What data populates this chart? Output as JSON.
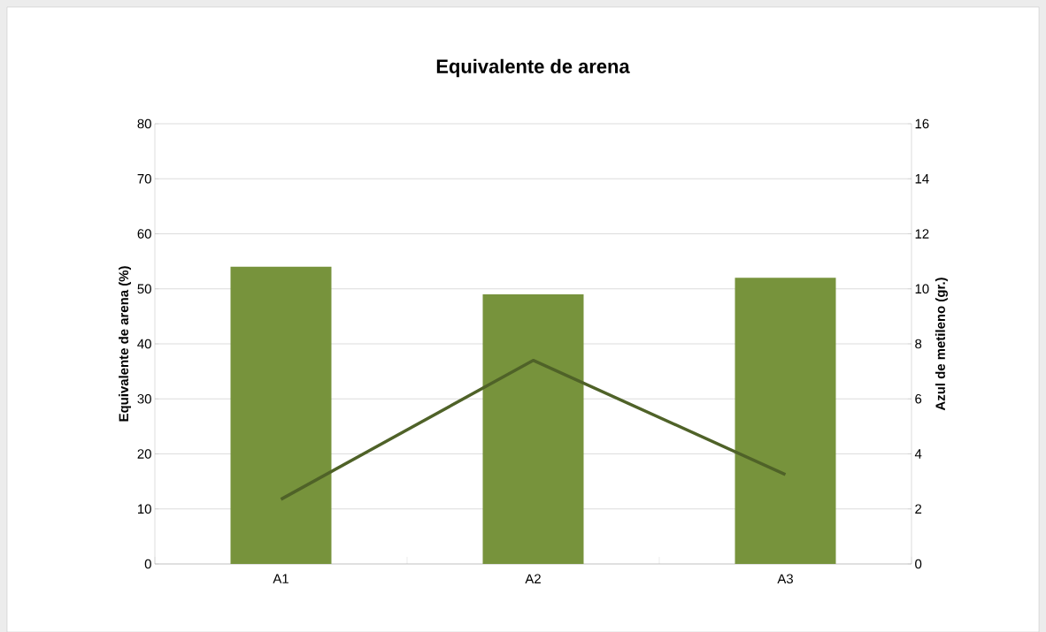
{
  "chart_data": {
    "type": "bar",
    "title": "Equivalente de arena",
    "ylabel": "Equivalente de arena (%)",
    "y2label": "Azul de metileno (gr.)",
    "categories": [
      "A1",
      "A2",
      "A3"
    ],
    "series": [
      {
        "color": "#77933c",
        "values": [
          54,
          49,
          52
        ]
      },
      {
        "type": "line",
        "axis": "y2",
        "color": "#4f6228",
        "values": [
          2.35,
          7.4,
          3.25
        ]
      }
    ],
    "ylim": [
      0,
      80
    ],
    "yticks": [
      0,
      10,
      20,
      30,
      40,
      50,
      60,
      70,
      80
    ],
    "y2lim": [
      0,
      16
    ],
    "y2ticks": [
      0,
      2,
      4,
      6,
      8,
      10,
      12,
      14,
      16
    ],
    "grid": "y"
  }
}
